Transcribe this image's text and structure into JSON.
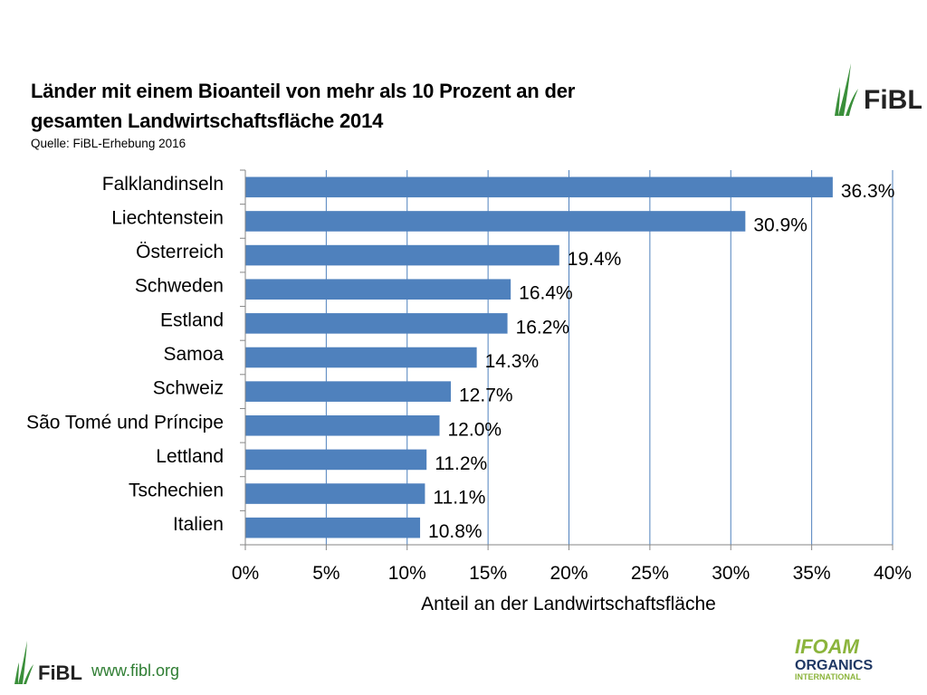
{
  "header": {
    "title_line1": "Länder mit einem Bioanteil von mehr als 10 Prozent an der",
    "title_line2": "gesamten Landwirtschaftsfläche 2014",
    "source": "Quelle: FiBL-Erhebung 2016"
  },
  "logos": {
    "fibl_top": "FiBL",
    "fibl_footer": "FiBL",
    "ifoam_line1": "IFOAM",
    "ifoam_line2": "ORGANICS",
    "ifoam_line3": "INTERNATIONAL"
  },
  "footer": {
    "url": "www.fibl.org"
  },
  "colors": {
    "bar": "#4f81bd",
    "grid": "#4f81bd",
    "axis": "#868686",
    "brand_green": "#2e7d32",
    "ifoam_green": "#8bb43c"
  },
  "chart_data": {
    "type": "bar",
    "orientation": "horizontal",
    "title": "Länder mit einem Bioanteil von mehr als 10 Prozent an der gesamten Landwirtschaftsfläche 2014",
    "xlabel": "Anteil an der Landwirtschaftsfläche",
    "ylabel": "",
    "xlim": [
      0,
      40
    ],
    "xticks": [
      0,
      5,
      10,
      15,
      20,
      25,
      30,
      35,
      40
    ],
    "xtick_labels": [
      "0%",
      "5%",
      "10%",
      "15%",
      "20%",
      "25%",
      "30%",
      "35%",
      "40%"
    ],
    "grid": true,
    "categories": [
      "Falklandinseln",
      "Liechtenstein",
      "Österreich",
      "Schweden",
      "Estland",
      "Samoa",
      "Schweiz",
      "São Tomé und Príncipe",
      "Lettland",
      "Tschechien",
      "Italien"
    ],
    "values": [
      36.3,
      30.9,
      19.4,
      16.4,
      16.2,
      14.3,
      12.7,
      12.0,
      11.2,
      11.1,
      10.8
    ],
    "value_labels": [
      "36.3%",
      "30.9%",
      "19.4%",
      "16.4%",
      "16.2%",
      "14.3%",
      "12.7%",
      "12.0%",
      "11.2%",
      "11.1%",
      "10.8%"
    ]
  }
}
